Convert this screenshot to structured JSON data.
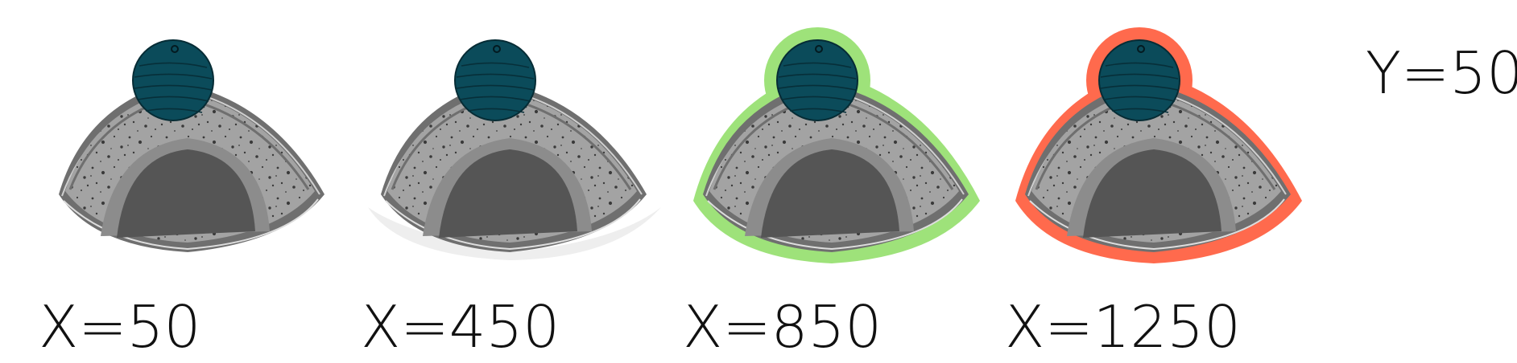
{
  "sprites": [
    {
      "name": "sprite-default",
      "state": "default",
      "label": "X=50"
    },
    {
      "name": "sprite-hover",
      "state": "hover",
      "label": "X=450"
    },
    {
      "name": "sprite-valid",
      "state": "valid",
      "label": "X=850"
    },
    {
      "name": "sprite-invalid",
      "state": "invalid",
      "label": "X=1250"
    }
  ],
  "y_label": "Y=50",
  "colors": {
    "stone_fill": "#a3a3a3",
    "stone_rim": "#6f6f6f",
    "speckle": "#3a3a3a",
    "arch_inner": "#555555",
    "arch_ring": "#8c8c8c",
    "disc_fill": "#0b4b5a",
    "disc_grain": "#072f39",
    "outline_valid": "#9ee27a",
    "outline_invalid": "#ff6a4d",
    "hover_glow": "#eeeeee"
  }
}
